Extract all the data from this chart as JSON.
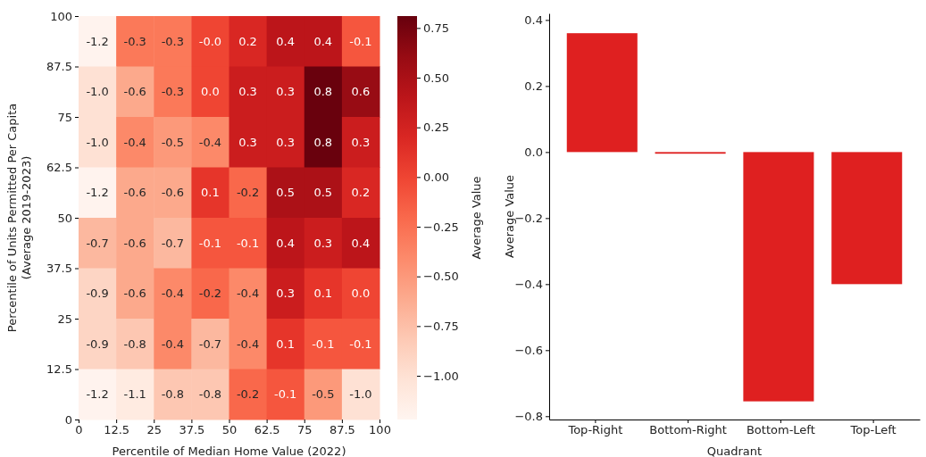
{
  "chart_data": [
    {
      "type": "heatmap",
      "xlabel": "Percentile of Median Home Value (2022)",
      "ylabel": "Percentile of Units Permitted Per Capita\n(Average 2019-2023)",
      "clabel": "Average Value",
      "xlim": [
        0,
        100
      ],
      "xticks": [
        0,
        12.5,
        25,
        37.5,
        50,
        62.5,
        75,
        87.5,
        100
      ],
      "ylim": [
        0,
        100
      ],
      "yticks": [
        0,
        12.5,
        25,
        37.5,
        50,
        62.5,
        75,
        87.5,
        100
      ],
      "cells": [
        [
          -1.2,
          -0.3,
          -0.3,
          -0.0,
          0.2,
          0.4,
          0.4,
          -0.1
        ],
        [
          -1.0,
          -0.6,
          -0.3,
          0.0,
          0.3,
          0.3,
          0.8,
          0.6
        ],
        [
          -1.0,
          -0.4,
          -0.5,
          -0.4,
          0.3,
          0.3,
          0.8,
          0.3
        ],
        [
          -1.2,
          -0.6,
          -0.6,
          0.1,
          -0.2,
          0.5,
          0.5,
          0.2
        ],
        [
          -0.7,
          -0.6,
          -0.7,
          -0.1,
          -0.1,
          0.4,
          0.3,
          0.4
        ],
        [
          -0.9,
          -0.6,
          -0.4,
          -0.2,
          -0.4,
          0.3,
          0.1,
          0.0
        ],
        [
          -0.9,
          -0.8,
          -0.4,
          -0.7,
          -0.4,
          0.1,
          -0.1,
          -0.1
        ],
        [
          -1.2,
          -1.1,
          -0.8,
          -0.8,
          -0.2,
          -0.1,
          -0.5,
          -1.0
        ]
      ],
      "clim": [
        -1.22,
        0.81
      ],
      "cticks": [
        {
          "value": 0.75,
          "label": "0.75"
        },
        {
          "value": 0.5,
          "label": "0.50"
        },
        {
          "value": 0.25,
          "label": "0.25"
        },
        {
          "value": 0,
          "label": "0.00"
        },
        {
          "value": -0.25,
          "label": "−0.25"
        },
        {
          "value": -0.5,
          "label": "−0.50"
        },
        {
          "value": -0.75,
          "label": "−0.75"
        },
        {
          "value": -1,
          "label": "−1.00"
        }
      ],
      "cell_labels": [
        [
          "-1.2",
          "-0.3",
          "-0.3",
          "-0.0",
          "0.2",
          "0.4",
          "0.4",
          "-0.1"
        ],
        [
          "-1.0",
          "-0.6",
          "-0.3",
          "0.0",
          "0.3",
          "0.3",
          "0.8",
          "0.6"
        ],
        [
          "-1.0",
          "-0.4",
          "-0.5",
          "-0.4",
          "0.3",
          "0.3",
          "0.8",
          "0.3"
        ],
        [
          "-1.2",
          "-0.6",
          "-0.6",
          "0.1",
          "-0.2",
          "0.5",
          "0.5",
          "0.2"
        ],
        [
          "-0.7",
          "-0.6",
          "-0.7",
          "-0.1",
          "-0.1",
          "0.4",
          "0.3",
          "0.4"
        ],
        [
          "-0.9",
          "-0.6",
          "-0.4",
          "-0.2",
          "-0.4",
          "0.3",
          "0.1",
          "0.0"
        ],
        [
          "-0.9",
          "-0.8",
          "-0.4",
          "-0.7",
          "-0.4",
          "0.1",
          "-0.1",
          "-0.1"
        ],
        [
          "-1.2",
          "-1.1",
          "-0.8",
          "-0.8",
          "-0.2",
          "-0.1",
          "-0.5",
          "-1.0"
        ]
      ]
    },
    {
      "type": "bar",
      "xlabel": "Quadrant",
      "ylabel": "Average Value",
      "categories": [
        "Top-Right",
        "Bottom-Right",
        "Bottom-Left",
        "Top-Left"
      ],
      "values": [
        0.36,
        -0.005,
        -0.755,
        -0.4
      ],
      "color": "#df2020",
      "ylim": [
        -0.81,
        0.42
      ],
      "yticks": [
        {
          "value": 0.4,
          "label": "0.4"
        },
        {
          "value": 0.2,
          "label": "0.2"
        },
        {
          "value": 0,
          "label": "0.0"
        },
        {
          "value": -0.2,
          "label": "−0.2"
        },
        {
          "value": -0.4,
          "label": "−0.4"
        },
        {
          "value": -0.6,
          "label": "−0.6"
        },
        {
          "value": -0.8,
          "label": "−0.8"
        }
      ]
    }
  ]
}
